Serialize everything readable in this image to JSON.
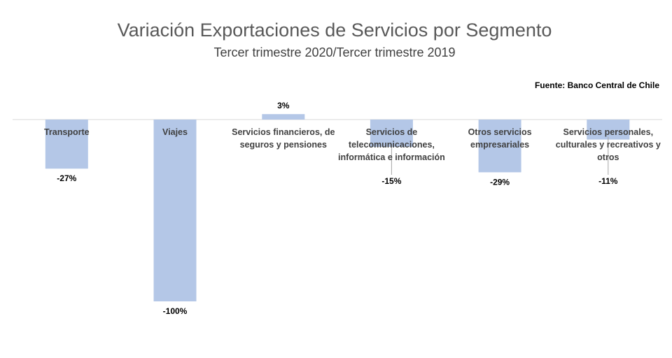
{
  "chart_data": {
    "type": "bar",
    "title": "Variación Exportaciones de Servicios por Segmento",
    "subtitle": "Tercer trimestre 2020/Tercer trimestre 2019",
    "source": "Fuente: Banco Central de Chile",
    "categories": [
      [
        "Transporte"
      ],
      [
        "Viajes"
      ],
      [
        "Servicios financieros, de",
        "seguros y pensiones"
      ],
      [
        "Servicios de",
        "telecomunicaciones,",
        "informática e información"
      ],
      [
        "Otros servicios",
        "empresariales"
      ],
      [
        "Servicios personales,",
        "culturales y recreativos y",
        "otros"
      ]
    ],
    "values": [
      -27,
      -100,
      3,
      -15,
      -29,
      -11
    ],
    "value_labels": [
      "-27%",
      "-100%",
      "3%",
      "-15%",
      "-29%",
      "-11%"
    ],
    "bar_color": "#b4c7e7",
    "axis_color": "#d9d9d9",
    "ylim": [
      -100,
      3
    ],
    "grid": false,
    "legend": "none"
  }
}
